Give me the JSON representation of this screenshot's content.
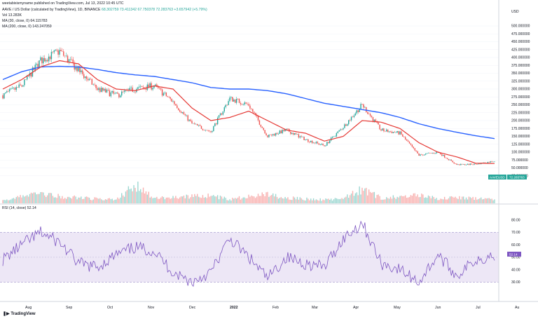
{
  "watermark": "weetabixismyname published on TradingView.com, Jul 13, 2022 10:45 UTC",
  "symbol_line": {
    "name": "AAVE / US Dollar (calculated by TradingView), 1D, BINANCE",
    "ohlc": "68.302759  73.411342  67.750378  72.283763  +3.657942 (+5.79%)"
  },
  "indicators": {
    "vol": "Vol  13.283K",
    "ma30": "MA (30, close, 0)  64.115783",
    "ma200": "MA (200, close, 0)  143.247059",
    "rsi": "RSI (14, close)  52.14"
  },
  "footer": {
    "logo": "TradingView"
  },
  "colors": {
    "up": "#26a69a",
    "down": "#ef5350",
    "ma30": "#e53935",
    "ma200": "#2962ff",
    "rsi": "#7e57c2",
    "rsi_band": "#ede7f6",
    "grid": "#f0f3fa"
  },
  "chart_data": [
    {
      "type": "candlestick",
      "title": "AAVE / US Dollar (calculated by TradingView), 1D, BINANCE",
      "price_axis_unit": "USD",
      "price_ticks": [
        50,
        75,
        100,
        150,
        200,
        225,
        250,
        275,
        300,
        325,
        350,
        375,
        400,
        425,
        450,
        475,
        500
      ],
      "price_axis_labels": [
        "USD",
        "500.000000",
        "475.000000",
        "450.000000",
        "425.000000",
        "400.000000",
        "375.000000",
        "350.000000",
        "325.000000",
        "300.000000",
        "275.000000",
        "250.000000",
        "225.000000",
        "200.000000",
        "175.000000",
        "150.000000",
        "125.000000",
        "100.000000",
        "75.000000",
        "50.000000",
        "25.000000"
      ],
      "last_price_label": "72.283763",
      "last_price_symbol": "AAVEUSD",
      "time_labels": [
        "Aug",
        "Sep",
        "Oct",
        "Nov",
        "Dec",
        "2022",
        "Feb",
        "Mar",
        "Apr",
        "May",
        "Jun",
        "Jul",
        "Au"
      ],
      "x": [
        "2021-07-13",
        "2021-07-27",
        "2021-08-10",
        "2021-08-24",
        "2021-09-07",
        "2021-09-21",
        "2021-10-05",
        "2021-10-19",
        "2021-11-02",
        "2021-11-16",
        "2021-11-30",
        "2021-12-14",
        "2021-12-28",
        "2022-01-11",
        "2022-01-25",
        "2022-02-08",
        "2022-02-22",
        "2022-03-08",
        "2022-03-22",
        "2022-04-05",
        "2022-04-19",
        "2022-05-03",
        "2022-05-17",
        "2022-05-31",
        "2022-06-14",
        "2022-06-28",
        "2022-07-13"
      ],
      "series": [
        {
          "name": "AAVE close",
          "values": [
            280,
            310,
            390,
            420,
            360,
            300,
            280,
            300,
            310,
            260,
            190,
            165,
            270,
            250,
            150,
            170,
            140,
            120,
            180,
            250,
            170,
            160,
            90,
            100,
            60,
            62,
            72
          ]
        },
        {
          "name": "MA (30, close, 0)",
          "values": [
            300,
            330,
            370,
            390,
            380,
            330,
            300,
            295,
            310,
            300,
            240,
            200,
            210,
            230,
            200,
            170,
            160,
            135,
            150,
            200,
            195,
            175,
            130,
            100,
            85,
            65,
            64
          ]
        },
        {
          "name": "MA (200, close, 0)",
          "values": [
            330,
            355,
            370,
            372,
            370,
            362,
            352,
            345,
            340,
            330,
            320,
            305,
            300,
            300,
            295,
            285,
            270,
            255,
            245,
            235,
            225,
            210,
            190,
            175,
            163,
            152,
            143
          ]
        },
        {
          "name": "Vol",
          "values": [
            10,
            25,
            30,
            22,
            18,
            14,
            12,
            60,
            15,
            20,
            22,
            25,
            12,
            22,
            28,
            18,
            14,
            12,
            15,
            45,
            18,
            20,
            30,
            14,
            18,
            15,
            13
          ]
        }
      ],
      "volume_ylim": [
        0,
        70
      ],
      "ylim": [
        0,
        500
      ]
    },
    {
      "type": "line",
      "title": "RSI (14, close)",
      "y_ticks": [
        30,
        40,
        50,
        60,
        70,
        80
      ],
      "y_axis_labels": [
        "80.00",
        "70.00",
        "60.00",
        "50.00",
        "40.00",
        "30.00"
      ],
      "band": [
        30,
        70
      ],
      "last_value_label": "52.14",
      "x": [
        "2021-07-13",
        "2021-07-27",
        "2021-08-10",
        "2021-08-24",
        "2021-09-07",
        "2021-09-21",
        "2021-10-05",
        "2021-10-19",
        "2021-11-02",
        "2021-11-16",
        "2021-11-30",
        "2021-12-14",
        "2021-12-28",
        "2022-01-11",
        "2022-01-25",
        "2022-02-08",
        "2022-02-22",
        "2022-03-08",
        "2022-03-22",
        "2022-04-05",
        "2022-04-19",
        "2022-05-03",
        "2022-05-17",
        "2022-05-31",
        "2022-06-14",
        "2022-06-28",
        "2022-07-13"
      ],
      "series": [
        {
          "name": "RSI (14, close)",
          "values": [
            48,
            60,
            70,
            62,
            45,
            42,
            52,
            58,
            55,
            38,
            30,
            38,
            65,
            50,
            33,
            50,
            45,
            42,
            65,
            78,
            45,
            40,
            30,
            52,
            35,
            48,
            52
          ]
        }
      ],
      "ylim": [
        20,
        85
      ]
    }
  ]
}
